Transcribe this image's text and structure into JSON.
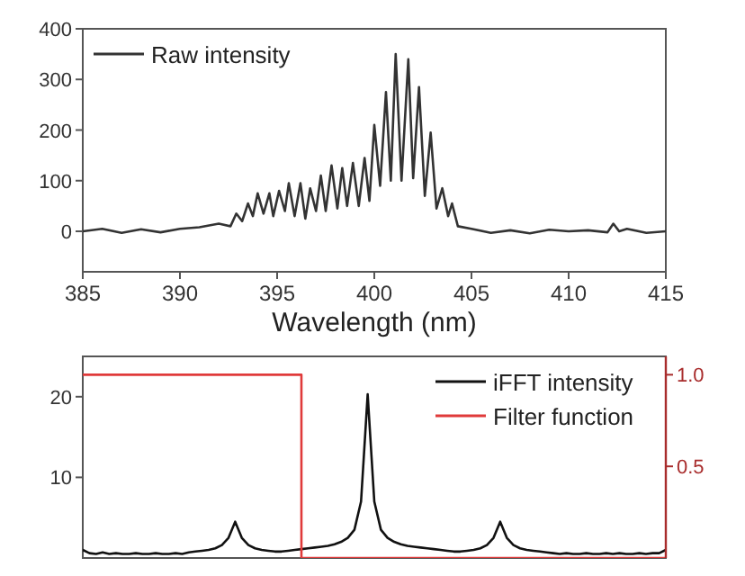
{
  "chart_data": [
    {
      "type": "line",
      "xlabel": "Wavelength (nm)",
      "xlim": [
        385,
        415
      ],
      "xticks": [
        385,
        390,
        395,
        400,
        405,
        410,
        415
      ],
      "ylim": [
        -80,
        400
      ],
      "yticks": [
        0,
        100,
        200,
        300,
        400
      ],
      "legend": "top left",
      "series": [
        {
          "name": "Raw intensity",
          "color": "#333333",
          "x": [
            385,
            386,
            387,
            388,
            389,
            390,
            391,
            392,
            392.6,
            392.9,
            393.2,
            393.5,
            393.75,
            394.0,
            394.3,
            394.6,
            394.8,
            395.1,
            395.4,
            395.6,
            395.9,
            396.2,
            396.45,
            396.7,
            397.0,
            397.25,
            397.5,
            397.8,
            398.1,
            398.35,
            398.6,
            398.9,
            399.2,
            399.5,
            399.75,
            400.0,
            400.3,
            400.6,
            400.85,
            401.1,
            401.4,
            401.75,
            402.0,
            402.3,
            402.6,
            402.9,
            403.2,
            403.5,
            403.8,
            404.0,
            404.3,
            405,
            406,
            407,
            408,
            409,
            410,
            411,
            412,
            412.3,
            412.6,
            413,
            414,
            415
          ],
          "values": [
            0,
            5,
            -3,
            4,
            -2,
            5,
            8,
            15,
            10,
            35,
            20,
            55,
            30,
            75,
            35,
            75,
            30,
            80,
            40,
            95,
            30,
            95,
            25,
            85,
            40,
            110,
            40,
            130,
            45,
            125,
            50,
            135,
            50,
            145,
            60,
            210,
            90,
            275,
            100,
            350,
            100,
            340,
            105,
            285,
            70,
            195,
            45,
            85,
            30,
            55,
            10,
            5,
            -3,
            2,
            -4,
            3,
            0,
            2,
            -2,
            15,
            0,
            5,
            -3,
            0
          ]
        }
      ]
    },
    {
      "type": "line",
      "categories": [
        null,
        null,
        null,
        null,
        null,
        null,
        null,
        null,
        null,
        null,
        null,
        null,
        null,
        null,
        null,
        null,
        null,
        null,
        null,
        null,
        null,
        null,
        null,
        null,
        null,
        null,
        null,
        null,
        null,
        null,
        null,
        null,
        null,
        null,
        null,
        null,
        null,
        null,
        null,
        null,
        null,
        null,
        null,
        null,
        null,
        null,
        null,
        null,
        null,
        null,
        null,
        null,
        null,
        null,
        null,
        null,
        null,
        null,
        null,
        null,
        null,
        null,
        null,
        null,
        null,
        null,
        null,
        null,
        null,
        null,
        null,
        null,
        null,
        null,
        null,
        null,
        null,
        null,
        null,
        null,
        null,
        null,
        null,
        null,
        null,
        null,
        null,
        null,
        null
      ],
      "ylim": [
        0,
        25
      ],
      "yticks": [
        10,
        20
      ],
      "y2lim": [
        0,
        1.1
      ],
      "y2ticks": [
        {
          "value": 0.5,
          "label": "0.5"
        },
        {
          "value": 1,
          "label": "1.0"
        }
      ],
      "legend": "top right",
      "series": [
        {
          "name": "iFFT intensity",
          "color": "#111111",
          "values": [
            1,
            0.6,
            0.5,
            0.7,
            0.5,
            0.6,
            0.5,
            0.5,
            0.6,
            0.5,
            0.5,
            0.6,
            0.5,
            0.5,
            0.6,
            0.5,
            0.7,
            0.8,
            0.9,
            1,
            1.2,
            1.6,
            2.5,
            4.5,
            2.5,
            1.6,
            1.2,
            1,
            0.9,
            0.8,
            0.8,
            0.9,
            1,
            1.1,
            1.2,
            1.3,
            1.4,
            1.5,
            1.7,
            2,
            2.5,
            3.5,
            7,
            20.3,
            7,
            3.5,
            2.5,
            2,
            1.7,
            1.5,
            1.4,
            1.3,
            1.2,
            1.1,
            1,
            0.9,
            0.8,
            0.8,
            0.9,
            1,
            1.2,
            1.6,
            2.5,
            4.5,
            2.5,
            1.6,
            1.2,
            1,
            0.9,
            0.8,
            0.7,
            0.6,
            0.5,
            0.6,
            0.5,
            0.5,
            0.6,
            0.5,
            0.5,
            0.6,
            0.5,
            0.6,
            0.5,
            0.5,
            0.6,
            0.5,
            0.6,
            0.6,
            1
          ]
        },
        {
          "name": "Filter function",
          "color": "#e03a3a",
          "type": "step",
          "axis": "y2",
          "values": [
            1,
            1,
            1,
            1,
            1,
            1,
            1,
            1,
            1,
            1,
            1,
            1,
            1,
            1,
            1,
            1,
            1,
            1,
            1,
            1,
            1,
            1,
            1,
            1,
            1,
            1,
            1,
            1,
            1,
            1,
            1,
            1,
            1,
            0,
            0,
            0,
            0,
            0,
            0,
            0,
            0,
            0,
            0,
            0,
            0,
            0,
            0,
            0,
            0,
            0,
            0,
            0,
            0,
            0,
            0,
            0,
            0,
            0,
            0,
            0,
            0,
            0,
            0,
            0,
            0,
            0,
            0,
            0,
            0,
            0,
            0,
            0,
            0,
            0,
            0,
            0,
            0,
            0,
            0,
            0,
            0,
            0,
            0,
            0,
            0,
            0,
            0,
            0,
            0
          ]
        }
      ]
    }
  ]
}
